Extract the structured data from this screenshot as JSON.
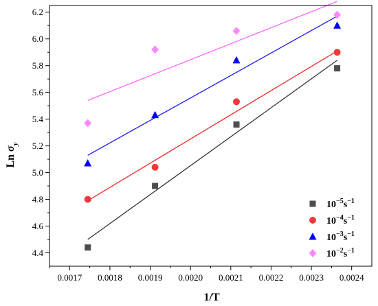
{
  "chart_data": {
    "type": "scatter",
    "xlabel": "1/T",
    "ylabel": {
      "main": "Ln ",
      "sym": "σ",
      "sub": "y"
    },
    "xlim": [
      0.00165,
      0.00245
    ],
    "ylim": [
      4.3,
      6.25
    ],
    "xticks": [
      0.0017,
      0.0018,
      0.0019,
      0.002,
      0.0021,
      0.0022,
      0.0023,
      0.0024
    ],
    "xtick_labels": [
      "0.0017",
      "0.0018",
      "0.0019",
      "0.0020",
      "0.0021",
      "0.0022",
      "0.0023",
      "0.0024"
    ],
    "yticks": [
      4.4,
      4.6,
      4.8,
      5.0,
      5.2,
      5.4,
      5.6,
      5.8,
      6.0,
      6.2
    ],
    "ytick_labels": [
      "4.4",
      "4.6",
      "4.8",
      "5.0",
      "5.2",
      "5.4",
      "5.6",
      "5.8",
      "6.0",
      "6.2"
    ],
    "legend_position": "bottom-right",
    "grid": false,
    "series": [
      {
        "label": {
          "base": "10",
          "exp": "−5",
          "unit": "s",
          "uexp": "−1"
        },
        "marker": "square",
        "color": "#4d4d4d",
        "line_color": "#333333",
        "x": [
          0.001745,
          0.001912,
          0.002114,
          0.002364
        ],
        "y": [
          4.44,
          4.9,
          5.36,
          5.78
        ],
        "fit": [
          [
            0.001745,
            4.5
          ],
          [
            0.002364,
            5.84
          ]
        ]
      },
      {
        "label": {
          "base": "10",
          "exp": "−4",
          "unit": "s",
          "uexp": "−1"
        },
        "marker": "circle",
        "color": "#ee3a3a",
        "line_color": "#ee2b2b",
        "x": [
          0.001745,
          0.001912,
          0.002114,
          0.002364
        ],
        "y": [
          4.8,
          5.04,
          5.53,
          5.9
        ],
        "fit": [
          [
            0.001745,
            4.79
          ],
          [
            0.002364,
            5.91
          ]
        ]
      },
      {
        "label": {
          "base": "10",
          "exp": "−3",
          "unit": "s",
          "uexp": "−1"
        },
        "marker": "triangle",
        "color": "#0000ff",
        "line_color": "#1a1aee",
        "x": [
          0.001745,
          0.001912,
          0.002114,
          0.002364
        ],
        "y": [
          5.07,
          5.43,
          5.84,
          6.1
        ],
        "fit": [
          [
            0.001745,
            5.13
          ],
          [
            0.002364,
            6.17
          ]
        ]
      },
      {
        "label": {
          "base": "10",
          "exp": "−2",
          "unit": "s",
          "uexp": "−1"
        },
        "marker": "diamond",
        "color": "#ff88ff",
        "line_color": "#ff66ff",
        "x": [
          0.001745,
          0.001912,
          0.002114,
          0.002364
        ],
        "y": [
          5.37,
          5.92,
          6.06,
          6.18
        ],
        "fit": [
          [
            0.001745,
            5.54
          ],
          [
            0.002364,
            6.28
          ]
        ]
      }
    ]
  }
}
